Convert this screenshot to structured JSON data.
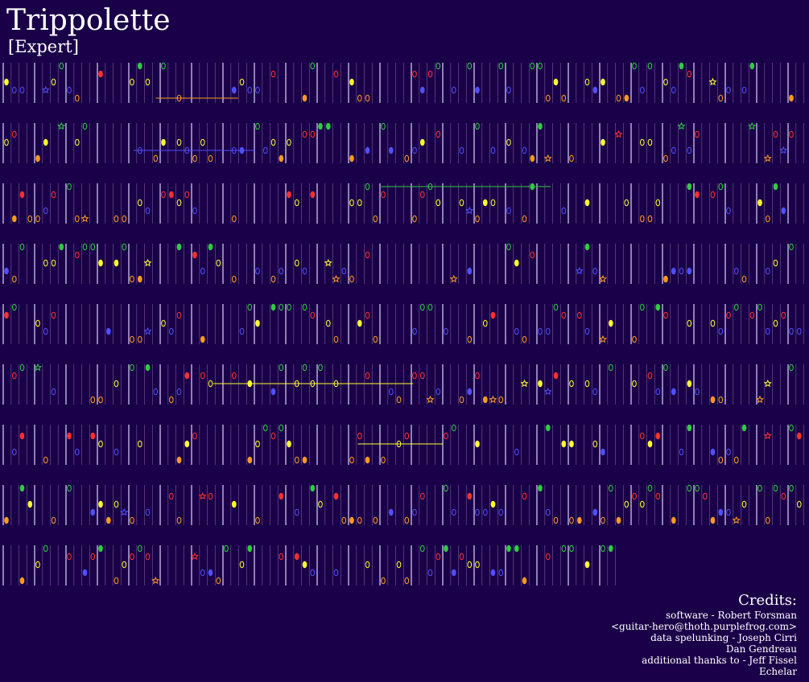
{
  "song": {
    "title": "Trippolette",
    "difficulty": "[Expert]"
  },
  "credits": {
    "heading": "Credits:",
    "lines": [
      "software - Robert Forsman",
      "<guitar-hero@thoth.purplefrog.com>",
      "data spelunking - Joseph Cirri",
      "Dan Gendreau",
      "additional thanks to - Jeff Fissel",
      "Echelar"
    ]
  },
  "colors": {
    "background": "#1a0048",
    "text": "#ffffff",
    "beat_line": "#9a8ab8",
    "measure_line": "#e0d8ff",
    "green": "#2ecc40",
    "red": "#ff3030",
    "yellow": "#ffff30",
    "blue": "#5050ff",
    "orange": "#ff9a20"
  },
  "note_tracks": {
    "note_order": [
      "green",
      "red",
      "yellow",
      "blue",
      "orange"
    ],
    "rows": 9,
    "seed": 7
  }
}
